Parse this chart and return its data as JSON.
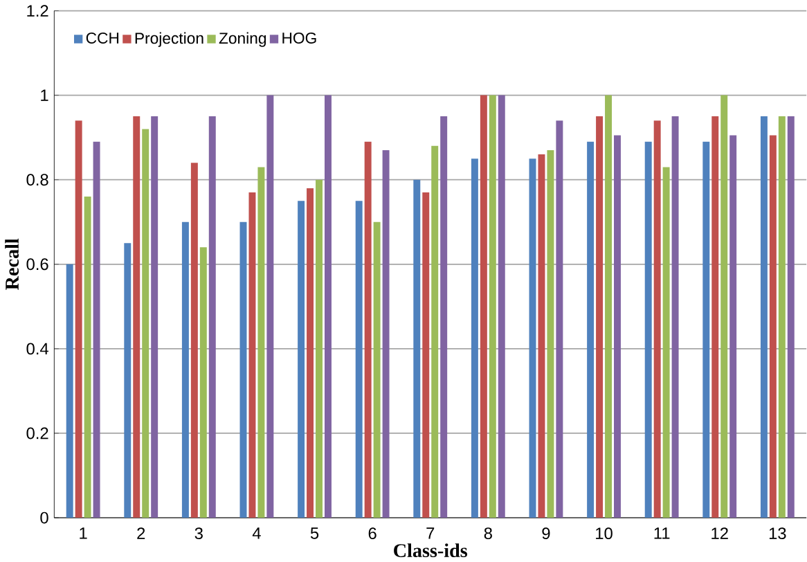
{
  "chart_data": {
    "type": "bar",
    "xlabel": "Class-ids",
    "ylabel": "Recall",
    "categories": [
      "1",
      "2",
      "3",
      "4",
      "5",
      "6",
      "7",
      "8",
      "9",
      "10",
      "11",
      "12",
      "13"
    ],
    "series": [
      {
        "name": "CCH",
        "color": "#4f81bd",
        "values": [
          0.6,
          0.65,
          0.7,
          0.7,
          0.75,
          0.75,
          0.8,
          0.85,
          0.85,
          0.89,
          0.89,
          0.89,
          0.95
        ]
      },
      {
        "name": "Projection",
        "color": "#c0504d",
        "values": [
          0.94,
          0.95,
          0.84,
          0.77,
          0.78,
          0.89,
          0.77,
          1.0,
          0.86,
          0.95,
          0.94,
          0.95,
          0.905
        ]
      },
      {
        "name": "Zoning",
        "color": "#9bbb59",
        "values": [
          0.76,
          0.92,
          0.64,
          0.83,
          0.8,
          0.7,
          0.88,
          1.0,
          0.87,
          1.0,
          0.83,
          1.0,
          0.95
        ]
      },
      {
        "name": "HOG",
        "color": "#8064a2",
        "values": [
          0.89,
          0.95,
          0.95,
          1.0,
          1.0,
          0.87,
          0.95,
          1.0,
          0.94,
          0.905,
          0.95,
          0.905,
          0.95
        ]
      }
    ],
    "ylim": [
      0,
      1.2
    ],
    "yticks": [
      0,
      0.2,
      0.4,
      0.6,
      0.8,
      1,
      1.2
    ],
    "grid": "y",
    "legend": "top left"
  }
}
